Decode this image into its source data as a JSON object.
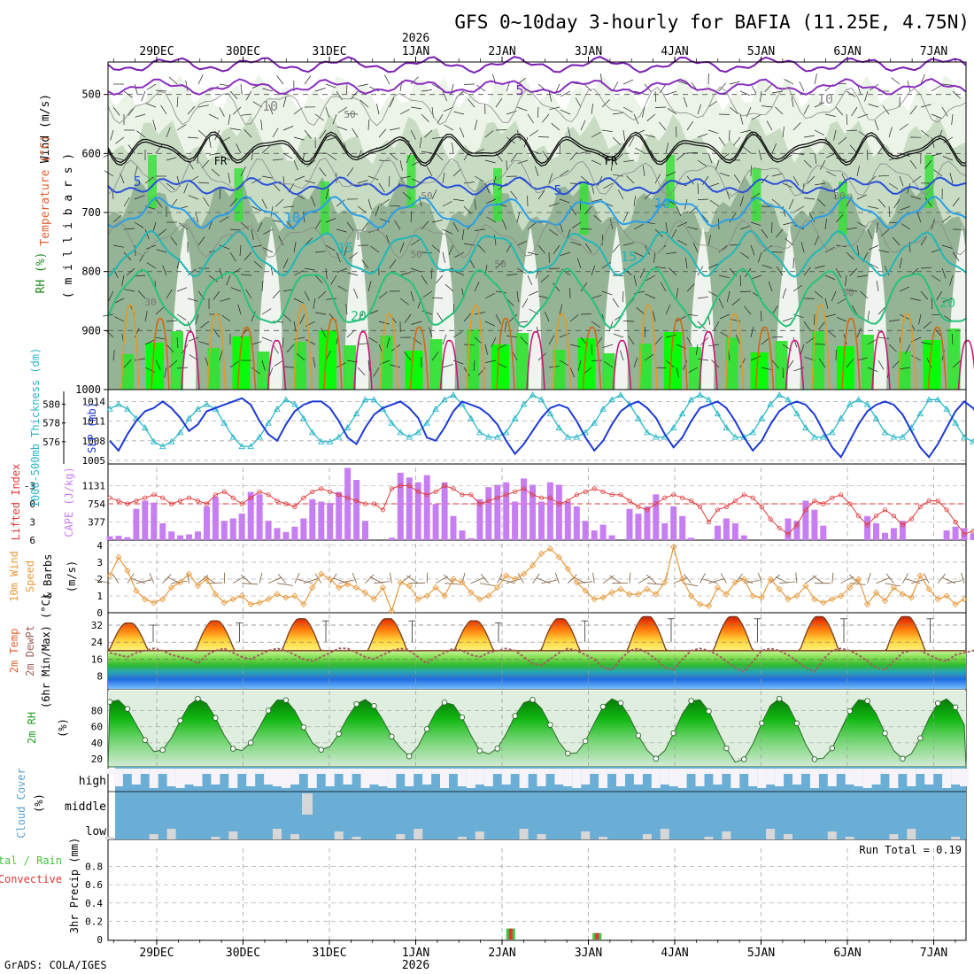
{
  "title": "GFS 0~10day 3-hourly for BAFIA (11.25E, 4.75N)",
  "credit": "GrADS: COLA/IGES",
  "year_label": "2026",
  "dates": [
    "29DEC",
    "30DEC",
    "31DEC",
    "1JAN",
    "2JAN",
    "3JAN",
    "4JAN",
    "5JAN",
    "6JAN",
    "7JAN"
  ],
  "colors": {
    "rh_light": "#e9f3e4",
    "rh_mid": "#c4d9c0",
    "rh_dark": "#8fae90",
    "rh_green": "#33e133",
    "rh_bright": "#00ff00",
    "slp": "#1c3ad6",
    "thickness": "#2ab8c8",
    "cape": "#c77ef2",
    "lifted_index": "#e03a3a",
    "wind10": "#e89a3c",
    "barb": "#7a5a3a",
    "dewpt": "#a1605c",
    "cloud_blue": "#6aaed6",
    "cloud_white": "#f6f4fa",
    "cloud_gray": "#d7d7d7",
    "precip_rain": "#41c441",
    "precip_conv": "#e23535"
  },
  "chart_data": [
    {
      "type": "contour",
      "name": "upper",
      "ylabel_parts": [
        "RH (%)",
        "Temperature (°C)",
        "Wind (m/s)"
      ],
      "axis_label": "( m i l l i b a r s )",
      "y_ticks": [
        500,
        600,
        700,
        800,
        900,
        1000
      ],
      "ylim": [
        1000,
        445
      ],
      "contour_labels": [
        "5",
        "5",
        "10",
        "15",
        "20",
        "10",
        "15",
        "5",
        "10",
        "20",
        "10"
      ],
      "rh_labels": [
        "50",
        "50",
        "30",
        "50",
        "50",
        "30",
        "50"
      ],
      "freezing_label": "FR",
      "isotherm_levels": [
        5,
        10,
        15,
        20
      ],
      "isotherm_mb": [
        {
          "t": 5,
          "mb": 655
        },
        {
          "t": 10,
          "mb": 700
        },
        {
          "t": 15,
          "mb": 770
        },
        {
          "t": 20,
          "mb": 845
        }
      ],
      "freezing_level_mb": 590
    },
    {
      "type": "line",
      "name": "slp_thickness",
      "ylabel_left": "1000-500mb Thickness (dm)",
      "ylabel_right": "SLP (mb)",
      "left_ticks": [
        580,
        578,
        576
      ],
      "left_lim": [
        574,
        581
      ],
      "right_ticks": [
        1014,
        1011,
        1008,
        1005
      ],
      "right_lim": [
        1005,
        1015
      ],
      "slp": [
        1008,
        1006.5,
        1009,
        1011,
        1012.5,
        1013,
        1014,
        1013,
        1011.5,
        1009.5,
        1010.5,
        1012.5,
        1013,
        1013.5,
        1014,
        1014.5,
        1013.5,
        1011,
        1009,
        1008,
        1010.5,
        1012.5,
        1013.5,
        1014,
        1014,
        1013,
        1011,
        1008.5,
        1007.5,
        1010,
        1012,
        1013,
        1013.5,
        1014,
        1013,
        1011.5,
        1008.5,
        1008,
        1010,
        1012.5,
        1014,
        1013.5,
        1013,
        1012,
        1010.5,
        1008,
        1006,
        1007.5,
        1009.5,
        1011.5,
        1013,
        1013.5,
        1013,
        1011,
        1008.5,
        1006.5,
        1008,
        1010.5,
        1012.5,
        1013.5,
        1014,
        1013,
        1011.5,
        1009,
        1007,
        1008.5,
        1011,
        1013,
        1013.5,
        1014,
        1013,
        1011,
        1008.5,
        1006.5,
        1008,
        1010.5,
        1012.5,
        1013.5,
        1014,
        1013.5,
        1012,
        1009.5,
        1007,
        1005.5,
        1008,
        1010.5,
        1012.5,
        1013.5,
        1014,
        1013.5,
        1012,
        1009.5,
        1007,
        1005.5,
        1007.5,
        1010,
        1012.5,
        1014,
        1013,
        1011,
        1010.5,
        1012
      ],
      "thickness": [
        579.5,
        580,
        579.5,
        578.5,
        577.5,
        576,
        575.5,
        576,
        577,
        578.5,
        579.5,
        580,
        579.5,
        578,
        576.5,
        575.5,
        575.5,
        576.5,
        578,
        579.5,
        580.5,
        580,
        578.5,
        577,
        576,
        576,
        576.5,
        577.5,
        579,
        580.5,
        580.5,
        579.5,
        578,
        577,
        576.5,
        577,
        578,
        579.5,
        580.5,
        581,
        580,
        578.5,
        577,
        576.5,
        576.5,
        577,
        578.5,
        580,
        581,
        580.5,
        579,
        577.5,
        576.5,
        576.5,
        577,
        578,
        579.5,
        580.5,
        581,
        580,
        578.5,
        577,
        576.5,
        576.5,
        577.5,
        579,
        580.5,
        581,
        580.5,
        579,
        577.5,
        576.5,
        576.5,
        577,
        578.5,
        580,
        581,
        580.5,
        579,
        577.5,
        576.5,
        576.5,
        577,
        578.5,
        580,
        580.5,
        580,
        578.5,
        577,
        576.5,
        576.5,
        577.5,
        579,
        580.5,
        580.5,
        579.5,
        578,
        576.5,
        576,
        575.5
      ]
    },
    {
      "type": "bar_line",
      "name": "cape_li",
      "ylabel_left": "Lifted Index",
      "ylabel_right": "CAPE (J/kg)",
      "li_ticks": [
        -3,
        0,
        3,
        6
      ],
      "li_lim": [
        -6,
        6
      ],
      "cape_ticks": [
        1131,
        754,
        377
      ],
      "cape_lim": [
        0,
        1508
      ],
      "cape": [
        80,
        90,
        60,
        650,
        820,
        780,
        350,
        180,
        100,
        120,
        180,
        700,
        900,
        400,
        450,
        550,
        1000,
        950,
        400,
        250,
        170,
        280,
        450,
        850,
        800,
        770,
        1000,
        1500,
        1250,
        400,
        0,
        0,
        50,
        1400,
        1300,
        1200,
        1350,
        750,
        1200,
        500,
        200,
        40,
        850,
        1100,
        1150,
        1200,
        800,
        1280,
        1150,
        800,
        1200,
        1150,
        800,
        700,
        400,
        200,
        320,
        100,
        0,
        650,
        550,
        700,
        950,
        350,
        700,
        500,
        50,
        0,
        0,
        300,
        450,
        350,
        100,
        0,
        0,
        0,
        0,
        450,
        400,
        820,
        630,
        300,
        0,
        0,
        0,
        0,
        500,
        350,
        150,
        250,
        400,
        0,
        0,
        0,
        0,
        200,
        280,
        250,
        140,
        80
      ],
      "lifted_index": [
        -1,
        -0.5,
        0,
        -0.5,
        -1,
        -1.5,
        -1,
        0,
        -0.5,
        -1,
        -0.5,
        0,
        -1.5,
        -2,
        -1,
        0,
        -1,
        -2,
        -1.5,
        -0.5,
        0,
        0.5,
        -1,
        -2,
        -2.5,
        -2,
        -1.5,
        -1,
        -0.5,
        0,
        0,
        1,
        -2.5,
        -3,
        -3,
        -2,
        -1.5,
        -2,
        -3,
        -2.5,
        -1.5,
        -1.5,
        0,
        -0.5,
        -1,
        -1.5,
        -2,
        -2.5,
        -1.5,
        -1,
        -1,
        0,
        -0.5,
        -1.5,
        -2,
        -2.5,
        -2,
        -1.5,
        -1.5,
        -0.5,
        0.5,
        1,
        0,
        -1,
        -1.5,
        -1,
        -0.5,
        0.5,
        3,
        1,
        0.5,
        -0.5,
        -1.5,
        -1,
        0.5,
        2.5,
        4,
        5,
        3.5,
        1,
        -0.5,
        0,
        -1,
        -1.5,
        0,
        2,
        3.5,
        2,
        1,
        2,
        3.5,
        2.5,
        0.5,
        -0.5,
        -0.5,
        1,
        3,
        5,
        4.5,
        3
      ]
    },
    {
      "type": "line",
      "name": "wind10m",
      "ylabel": "10m Wind Speed & Barbs (m/s)",
      "ylabel_parts": [
        "10m Wind",
        "Speed",
        "& Barbs",
        "(m/s)"
      ],
      "y_ticks": [
        0,
        1,
        2,
        3,
        4
      ],
      "ylim": [
        0,
        4.1
      ],
      "values": [
        2.2,
        3.3,
        2.5,
        1.3,
        0.8,
        0.6,
        0.8,
        1.5,
        1.8,
        2.3,
        1.6,
        2.0,
        1.1,
        0.6,
        0.8,
        1.0,
        0.5,
        0.6,
        0.8,
        1.1,
        0.9,
        1.0,
        0.5,
        1.5,
        2.3,
        2.0,
        1.5,
        1.7,
        1.5,
        1.2,
        0.8,
        1.5,
        0.1,
        1.8,
        1.6,
        0.8,
        1.0,
        1.5,
        1.0,
        2.0,
        1.8,
        1.2,
        0.8,
        1.0,
        1.5,
        2.2,
        2.0,
        2.3,
        2.8,
        3.5,
        3.8,
        3.3,
        2.6,
        1.8,
        1.3,
        0.8,
        0.9,
        1.2,
        1.4,
        1.1,
        1.1,
        1.4,
        1.1,
        1.8,
        3.9,
        2.0,
        1.0,
        0.5,
        0.4,
        1.5,
        1.1,
        1.8,
        2.0,
        1.0,
        0.9,
        2.0,
        1.4,
        0.8,
        1.0,
        1.6,
        0.8,
        0.6,
        0.8,
        1.0,
        1.5,
        2.0,
        0.5,
        1.2,
        0.7,
        1.5,
        1.1,
        0.9,
        2.2,
        1.4,
        0.8,
        1.0,
        0.5,
        0.8
      ]
    },
    {
      "type": "area_line",
      "name": "temp_dewpt",
      "ylabel_parts": [
        "2m Temp",
        "2m DewPt",
        "(6hr Min/Max) (°C)"
      ],
      "y_ticks": [
        32,
        24,
        16,
        8
      ],
      "ylim": [
        2,
        37
      ],
      "daily_min": 20,
      "daily_max": [
        33,
        34,
        35,
        35,
        34,
        35,
        36,
        36,
        36,
        36
      ],
      "dewpoint": [
        19,
        18,
        17,
        19,
        20,
        21,
        20,
        18,
        17,
        16,
        14,
        18,
        20,
        21,
        19,
        17,
        16,
        18,
        20,
        21,
        20,
        18,
        16,
        15,
        17,
        19,
        21,
        21,
        19,
        17,
        16,
        18,
        20,
        21,
        20,
        17,
        14,
        17,
        19,
        21,
        20,
        18,
        17,
        19,
        20,
        21,
        20,
        17,
        14,
        13,
        16,
        19,
        21,
        20,
        18,
        16,
        12,
        11,
        16,
        20,
        21,
        19,
        16,
        12,
        11,
        16,
        20,
        21,
        20,
        18,
        15,
        12,
        10,
        15,
        20,
        21,
        20,
        18,
        15,
        12,
        10,
        16,
        20,
        21,
        20,
        18,
        15,
        12,
        11,
        15,
        19,
        20,
        20,
        18,
        16,
        15,
        18,
        19,
        20,
        20
      ]
    },
    {
      "type": "area",
      "name": "rh2m",
      "ylabel": "2m RH",
      "unit": "(%)",
      "y_ticks": [
        80,
        60,
        40,
        20
      ],
      "ylim": [
        10,
        105
      ],
      "daily_low": [
        31,
        28,
        30,
        31,
        22,
        26,
        25,
        20,
        15,
        20
      ],
      "daily_high": [
        94,
        95,
        95,
        94,
        91,
        94,
        95,
        95,
        95,
        95
      ]
    },
    {
      "type": "table",
      "name": "cloud_cover",
      "ylabel": "Cloud Cover",
      "unit": "(%)",
      "layers": [
        "high",
        "middle",
        "low"
      ]
    },
    {
      "type": "bar",
      "name": "precip",
      "ylabel": "3hr Precip (mm)",
      "legend": [
        "Total / Rain",
        "Convective"
      ],
      "y_ticks": [
        0,
        0.2,
        0.4,
        0.6,
        0.8
      ],
      "ylim": [
        0,
        1.0
      ],
      "run_total": "Run Total = 0.19",
      "events": [
        {
          "day_offset": 4.1,
          "rain": 0.12,
          "convective": 0.12
        },
        {
          "day_offset": 5.1,
          "rain": 0.07,
          "convective": 0.07
        }
      ]
    }
  ]
}
